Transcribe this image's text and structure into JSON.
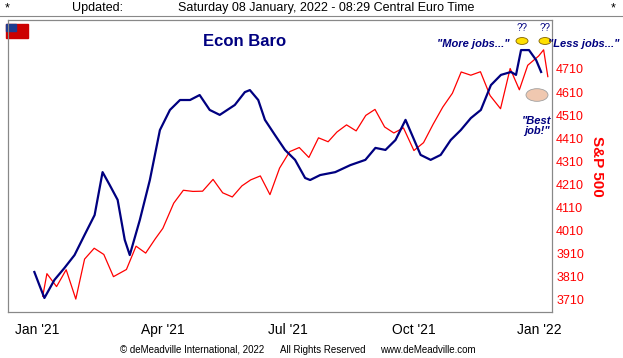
{
  "chart_data": {
    "type": "line",
    "header": {
      "left": "*",
      "label": "Updated:",
      "date": "Saturday 08 January, 2022 - 08:29 Central Euro Time",
      "right": "*"
    },
    "title": "Econ Baro",
    "y2_label": "S&P 500",
    "annotations": [
      "\"More jobs...\"",
      "\"Less jobs...\"",
      "??",
      "??",
      "\"Best\njob!\""
    ],
    "footer": [
      "© deMeadville International, 2022",
      "All Rights Reserved",
      "www.deMeadville.com"
    ],
    "xlim": [
      -0.7,
      12.3
    ],
    "xticks": [
      {
        "value": 0,
        "label": "Jan '21"
      },
      {
        "value": 3,
        "label": "Apr '21"
      },
      {
        "value": 6,
        "label": "Jul '21"
      },
      {
        "value": 9,
        "label": "Oct '21"
      },
      {
        "value": 12,
        "label": "Jan '22"
      }
    ],
    "ylim": [
      0,
      100
    ],
    "yticks": [],
    "y2lim": [
      3658,
      4922
    ],
    "y2ticks": [
      3710,
      3810,
      3910,
      4010,
      4110,
      4210,
      4310,
      4410,
      4510,
      4610,
      4710
    ],
    "grid": false,
    "series": [
      {
        "name": "Econ Baro",
        "color": "#000080",
        "axis": "y",
        "x": [
          -0.07,
          0.05,
          0.17,
          0.41,
          0.65,
          0.89,
          1.13,
          1.37,
          1.56,
          1.73,
          1.92,
          2.09,
          2.21,
          2.45,
          2.69,
          2.93,
          3.17,
          3.41,
          3.65,
          3.88,
          4.12,
          4.36,
          4.72,
          4.96,
          5.08,
          5.28,
          5.44,
          5.68,
          5.92,
          6.16,
          6.4,
          6.52,
          6.76,
          7.12,
          7.48,
          7.84,
          8.08,
          8.32,
          8.56,
          8.8,
          9.16,
          9.4,
          9.64,
          9.88,
          10.12,
          10.36,
          10.6,
          10.84,
          11.08,
          11.32,
          11.44,
          11.56,
          11.75,
          11.92,
          12.04
        ],
        "values": [
          13.7,
          9.2,
          4.8,
          11.0,
          15.1,
          19.5,
          26.4,
          33.2,
          47.9,
          43.5,
          38.4,
          24.7,
          19.5,
          31.5,
          45.2,
          62.3,
          69.2,
          72.6,
          72.6,
          74.3,
          69.2,
          67.5,
          70.9,
          75.3,
          76.0,
          72.6,
          65.8,
          60.6,
          55.5,
          52.1,
          45.9,
          45.2,
          46.9,
          47.9,
          50.3,
          52.1,
          56.2,
          55.5,
          58.9,
          65.8,
          53.8,
          52.1,
          53.8,
          58.9,
          62.3,
          66.4,
          69.2,
          77.7,
          81.2,
          82.2,
          81.2,
          89.7,
          89.7,
          86.3,
          82.2
        ]
      },
      {
        "name": "S&P 500",
        "color": "#ff0000",
        "axis": "y2",
        "x": [
          0.13,
          0.23,
          0.46,
          0.69,
          0.92,
          1.13,
          1.36,
          1.59,
          1.82,
          2.13,
          2.36,
          2.59,
          2.82,
          3.0,
          3.26,
          3.49,
          3.72,
          3.95,
          4.2,
          4.43,
          4.66,
          4.89,
          5.1,
          5.33,
          5.56,
          5.79,
          6.03,
          6.26,
          6.49,
          6.72,
          6.95,
          7.16,
          7.39,
          7.62,
          7.85,
          8.07,
          8.3,
          8.52,
          8.75,
          9.0,
          9.23,
          9.46,
          9.69,
          9.92,
          10.13,
          10.36,
          10.59,
          10.82,
          11.07,
          11.3,
          11.52,
          11.72,
          11.98,
          12.1,
          12.2
        ],
        "values": [
          3726,
          3824,
          3768,
          3841,
          3714,
          3887,
          3934,
          3907,
          3811,
          3842,
          3943,
          3913,
          3975,
          4020,
          4129,
          4185,
          4180,
          4181,
          4232,
          4174,
          4156,
          4204,
          4230,
          4247,
          4166,
          4281,
          4352,
          4370,
          4327,
          4412,
          4395,
          4437,
          4468,
          4442,
          4509,
          4535,
          4459,
          4433,
          4455,
          4357,
          4391,
          4471,
          4545,
          4605,
          4697,
          4683,
          4698,
          4595,
          4538,
          4712,
          4620,
          4726,
          4766,
          4793,
          4677
        ]
      }
    ]
  }
}
